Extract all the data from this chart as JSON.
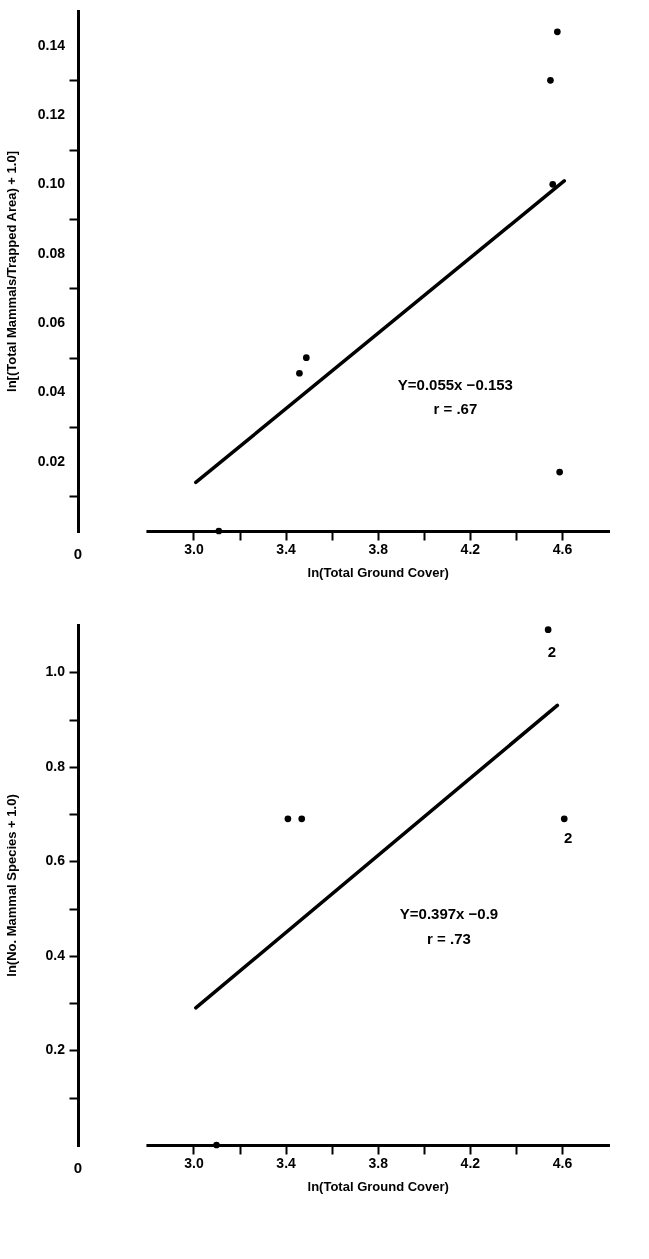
{
  "chart_data": [
    {
      "type": "scatter",
      "xlabel": "ln(Total Ground Cover)",
      "ylabel": "ln[(Total Mammals/Trapped Area) + 1.0]",
      "grid": false,
      "xlim": [
        2.8,
        4.8
      ],
      "xticks": [
        {
          "value": 3.0,
          "label": "3.0"
        },
        {
          "value": 3.2,
          "label": null
        },
        3.4,
        {
          "value": 3.6,
          "label": null
        },
        3.8,
        {
          "value": 4.0,
          "label": null
        },
        4.2,
        {
          "value": 4.4,
          "label": null
        },
        4.6
      ],
      "ylim": [
        0,
        0.15
      ],
      "yticks": [
        0.02,
        0.04,
        0.06,
        0.08,
        {
          "value": 0.1,
          "label": "0.10"
        },
        0.12,
        0.14
      ],
      "series": [
        {
          "marker": "circle",
          "color": "#000000",
          "x": [
            4.58,
            4.55,
            4.56,
            3.46,
            3.49,
            4.59,
            3.11
          ],
          "values": [
            0.144,
            0.13,
            0.1,
            0.0455,
            0.05,
            0.017,
            0
          ]
        },
        {
          "type": "line",
          "color": "#000000",
          "x": [
            3.01,
            4.61
          ],
          "values": [
            0.014,
            0.101
          ]
        }
      ],
      "annotations": [
        "Y=0.055x −0.153",
        "r = .67",
        "0"
      ]
    },
    {
      "type": "scatter",
      "xlabel": "ln(Total Ground Cover)",
      "ylabel": "ln(No. Mammal Species + 1.0)",
      "grid": false,
      "xlim": [
        2.8,
        4.8
      ],
      "xticks": [
        {
          "value": 3.0,
          "label": "3.0"
        },
        {
          "value": 3.2,
          "label": null
        },
        3.4,
        {
          "value": 3.6,
          "label": null
        },
        3.8,
        {
          "value": 4.0,
          "label": null
        },
        4.2,
        {
          "value": 4.4,
          "label": null
        },
        4.6
      ],
      "ylim": [
        0,
        1.1
      ],
      "yticks": [
        0.2,
        0.4,
        0.6,
        0.8,
        {
          "value": 1.0,
          "label": "1.0"
        }
      ],
      "series": [
        {
          "marker": "circle",
          "color": "#000000",
          "x": [
            4.54,
            4.61,
            3.41,
            3.47,
            3.1
          ],
          "values": [
            1.09,
            0.69,
            0.69,
            0.69,
            0
          ]
        },
        {
          "type": "line",
          "color": "#000000",
          "x": [
            3.01,
            4.58
          ],
          "values": [
            0.29,
            0.93
          ]
        }
      ],
      "annotations": [
        "2",
        "2",
        "Y=0.397x −0.9",
        "r = .73",
        "0"
      ]
    }
  ]
}
